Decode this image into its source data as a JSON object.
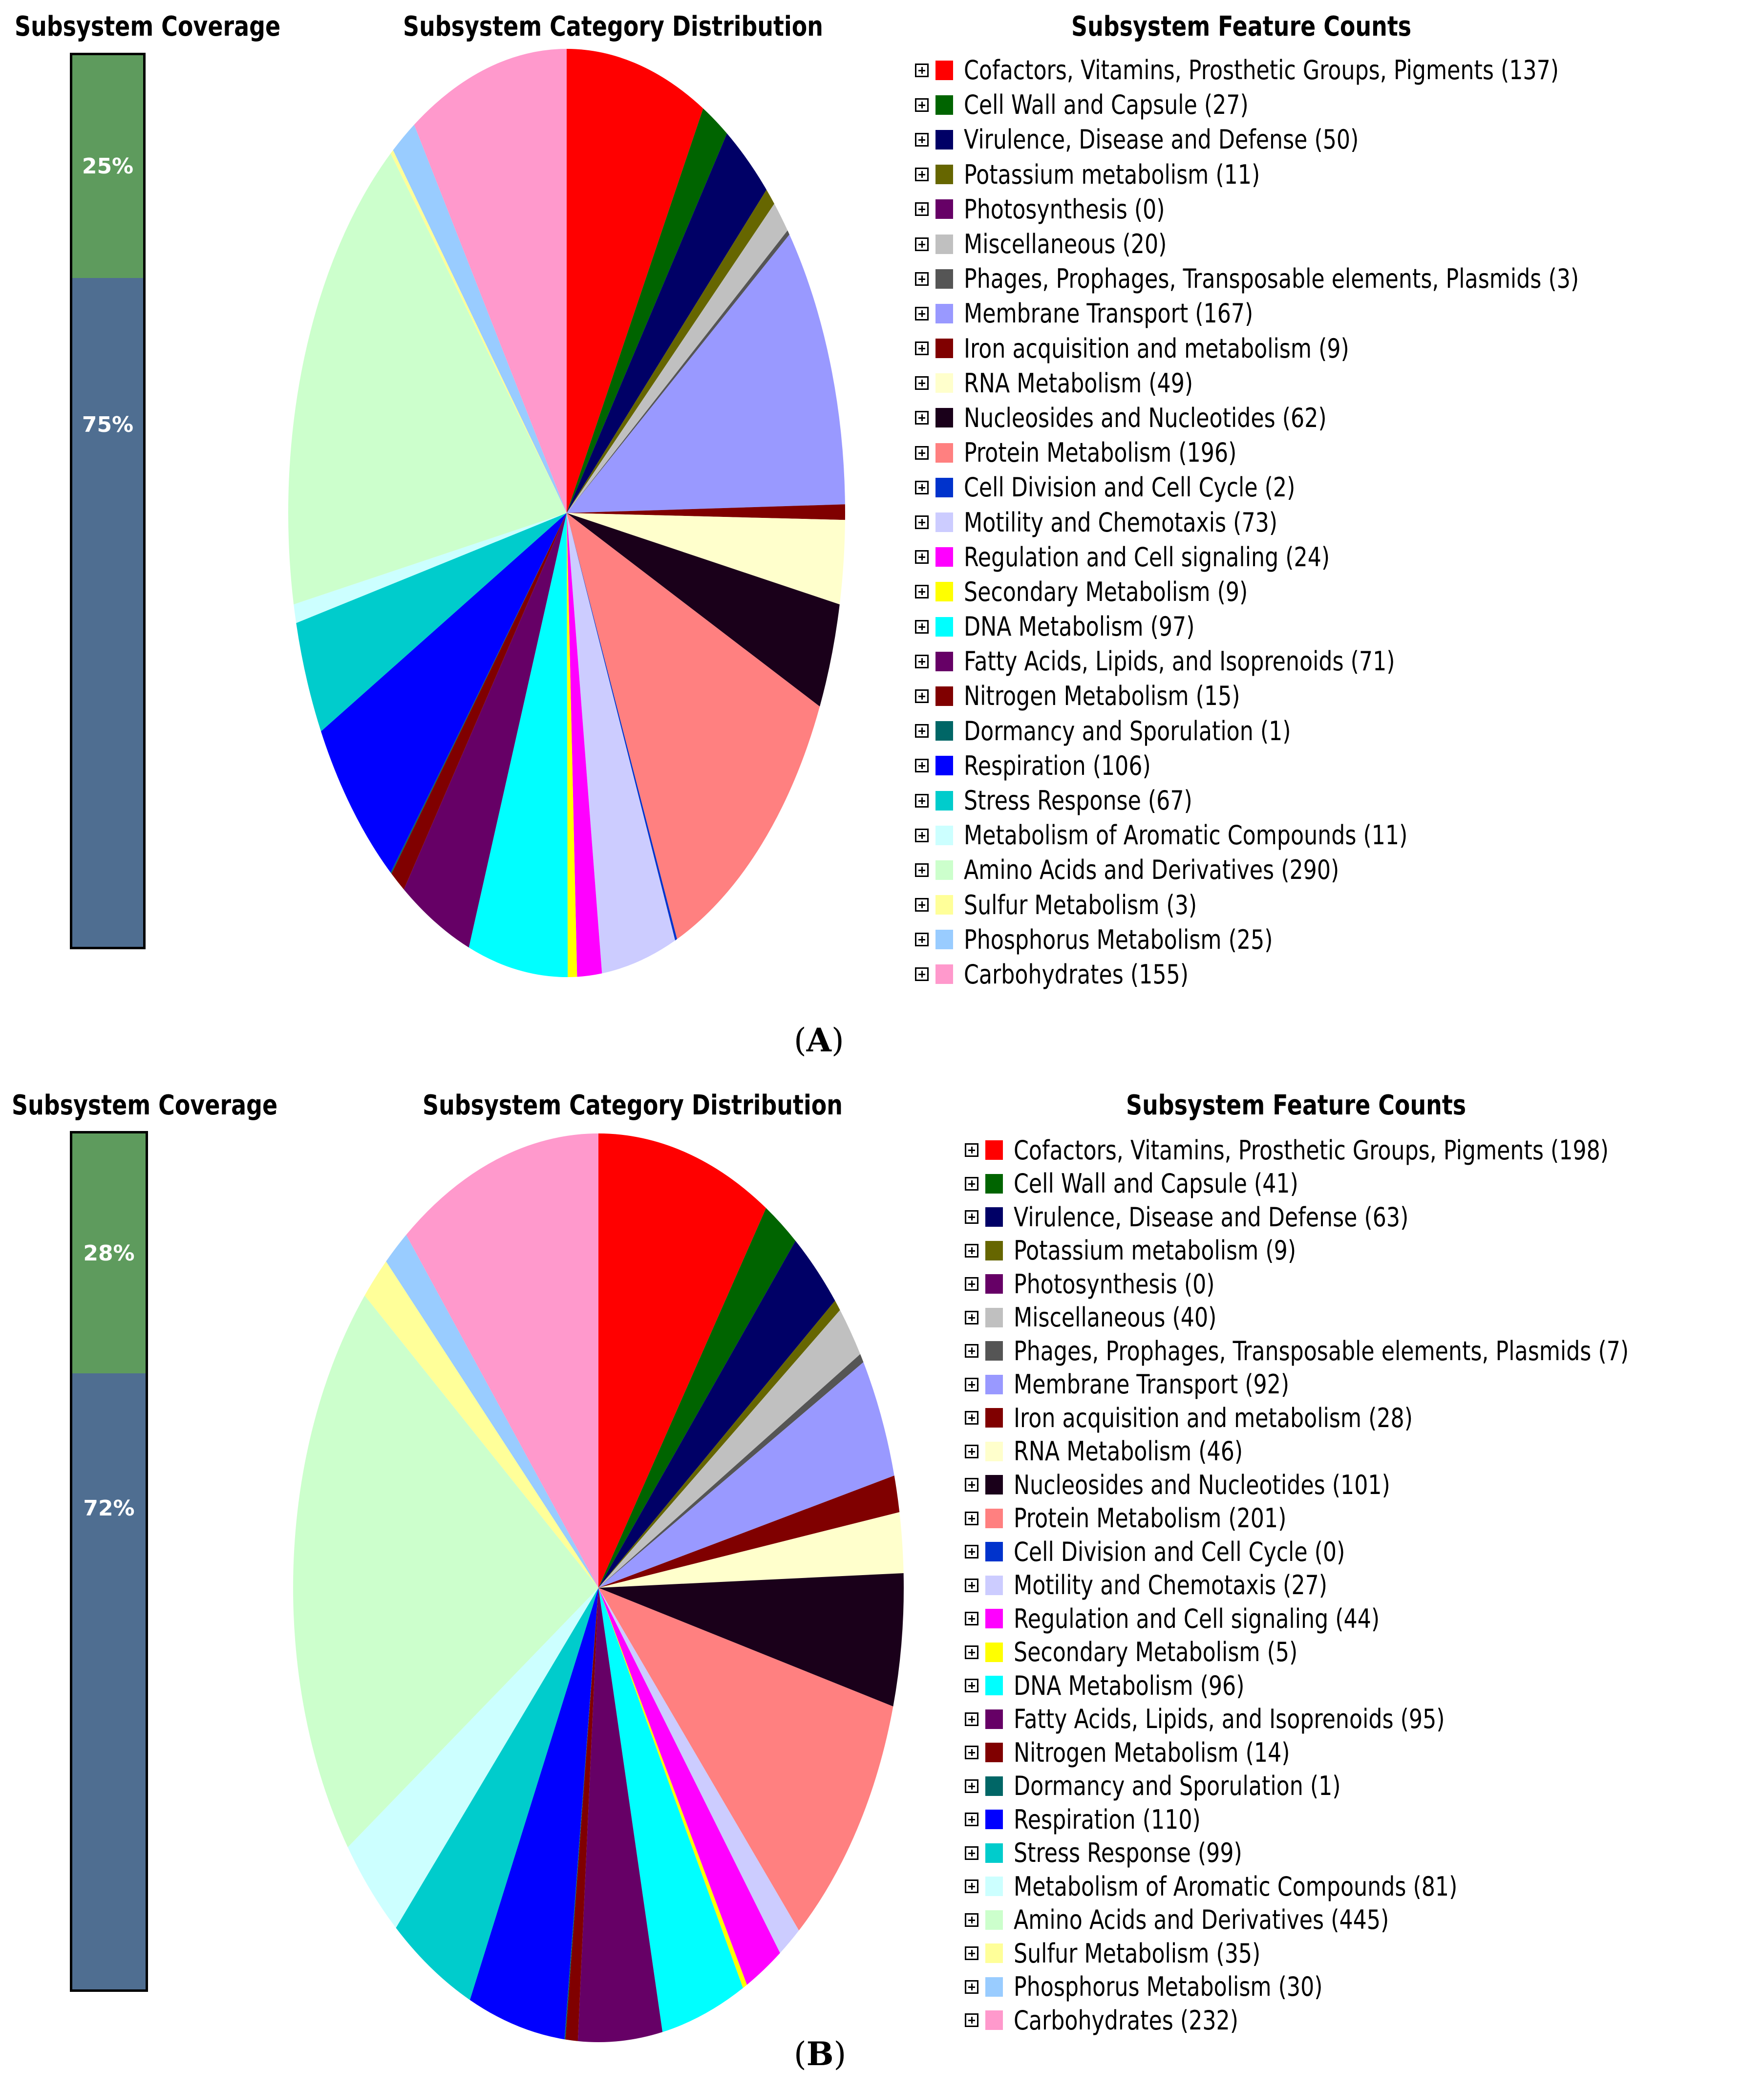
{
  "chart_data": [
    {
      "type": "pie",
      "panel_label": "A",
      "coverage_title": "Subsystem Coverage",
      "coverage": {
        "in_subsystem": "25%",
        "not_in_subsystem": "75%",
        "in_subsystem_value": 25,
        "not_in_subsystem_value": 75
      },
      "title": "Subsystem Category Distribution",
      "legend_title": "Subsystem Feature Counts",
      "series": [
        {
          "name": "Cofactors, Vitamins, Prosthetic Groups, Pigments",
          "value": 137,
          "label": "Cofactors, Vitamins, Prosthetic Groups, Pigments (137)",
          "color": "#ff0000"
        },
        {
          "name": "Cell Wall and Capsule",
          "value": 27,
          "label": "Cell Wall and Capsule (27)",
          "color": "#006400"
        },
        {
          "name": "Virulence, Disease and Defense",
          "value": 50,
          "label": "Virulence, Disease and Defense (50)",
          "color": "#000066"
        },
        {
          "name": "Potassium metabolism",
          "value": 11,
          "label": "Potassium metabolism (11)",
          "color": "#666600"
        },
        {
          "name": "Photosynthesis",
          "value": 0,
          "label": "Photosynthesis (0)",
          "color": "#660066"
        },
        {
          "name": "Miscellaneous",
          "value": 20,
          "label": "Miscellaneous (20)",
          "color": "#c0c0c0"
        },
        {
          "name": "Phages, Prophages, Transposable elements, Plasmids",
          "value": 3,
          "label": "Phages, Prophages, Transposable elements, Plasmids (3)",
          "color": "#555555"
        },
        {
          "name": "Membrane Transport",
          "value": 167,
          "label": "Membrane Transport (167)",
          "color": "#9999ff"
        },
        {
          "name": "Iron acquisition and metabolism",
          "value": 9,
          "label": "Iron acquisition and metabolism (9)",
          "color": "#800000"
        },
        {
          "name": "RNA Metabolism",
          "value": 49,
          "label": "RNA Metabolism (49)",
          "color": "#ffffcc"
        },
        {
          "name": "Nucleosides and Nucleotides",
          "value": 62,
          "label": "Nucleosides and Nucleotides (62)",
          "color": "#1a001a"
        },
        {
          "name": "Protein Metabolism",
          "value": 196,
          "label": "Protein Metabolism (196)",
          "color": "#ff8080"
        },
        {
          "name": "Cell Division and Cell Cycle",
          "value": 2,
          "label": "Cell Division and Cell Cycle (2)",
          "color": "#0033cc"
        },
        {
          "name": "Motility and Chemotaxis",
          "value": 73,
          "label": "Motility and Chemotaxis (73)",
          "color": "#ccccff"
        },
        {
          "name": "Regulation and Cell signaling",
          "value": 24,
          "label": "Regulation and Cell signaling (24)",
          "color": "#ff00ff"
        },
        {
          "name": "Secondary Metabolism",
          "value": 9,
          "label": "Secondary Metabolism (9)",
          "color": "#ffff00"
        },
        {
          "name": "DNA Metabolism",
          "value": 97,
          "label": "DNA Metabolism (97)",
          "color": "#00ffff"
        },
        {
          "name": "Fatty Acids, Lipids, and Isoprenoids",
          "value": 71,
          "label": "Fatty Acids, Lipids, and Isoprenoids (71)",
          "color": "#660066"
        },
        {
          "name": "Nitrogen Metabolism",
          "value": 15,
          "label": "Nitrogen Metabolism (15)",
          "color": "#800000"
        },
        {
          "name": "Dormancy and Sporulation",
          "value": 1,
          "label": "Dormancy and Sporulation (1)",
          "color": "#006666"
        },
        {
          "name": "Respiration",
          "value": 106,
          "label": "Respiration (106)",
          "color": "#0000ff"
        },
        {
          "name": "Stress Response",
          "value": 67,
          "label": "Stress Response (67)",
          "color": "#00cccc"
        },
        {
          "name": "Metabolism of Aromatic Compounds",
          "value": 11,
          "label": "Metabolism of Aromatic Compounds (11)",
          "color": "#ccffff"
        },
        {
          "name": "Amino Acids and Derivatives",
          "value": 290,
          "label": "Amino Acids and Derivatives (290)",
          "color": "#ccffcc"
        },
        {
          "name": "Sulfur Metabolism",
          "value": 3,
          "label": "Sulfur Metabolism (3)",
          "color": "#ffff99"
        },
        {
          "name": "Phosphorus Metabolism",
          "value": 25,
          "label": "Phosphorus Metabolism (25)",
          "color": "#99ccff"
        },
        {
          "name": "Carbohydrates",
          "value": 155,
          "label": "Carbohydrates (155)",
          "color": "#ff99cc"
        }
      ]
    },
    {
      "type": "pie",
      "panel_label": "B",
      "coverage_title": "Subsystem Coverage",
      "coverage": {
        "in_subsystem": "28%",
        "not_in_subsystem": "72%",
        "in_subsystem_value": 28,
        "not_in_subsystem_value": 72
      },
      "title": "Subsystem Category Distribution",
      "legend_title": "Subsystem Feature Counts",
      "series": [
        {
          "name": "Cofactors, Vitamins, Prosthetic Groups, Pigments",
          "value": 198,
          "label": "Cofactors, Vitamins, Prosthetic Groups, Pigments (198)",
          "color": "#ff0000"
        },
        {
          "name": "Cell Wall and Capsule",
          "value": 41,
          "label": "Cell Wall and Capsule (41)",
          "color": "#006400"
        },
        {
          "name": "Virulence, Disease and Defense",
          "value": 63,
          "label": "Virulence, Disease and Defense (63)",
          "color": "#000066"
        },
        {
          "name": "Potassium metabolism",
          "value": 9,
          "label": "Potassium metabolism (9)",
          "color": "#666600"
        },
        {
          "name": "Photosynthesis",
          "value": 0,
          "label": "Photosynthesis (0)",
          "color": "#660066"
        },
        {
          "name": "Miscellaneous",
          "value": 40,
          "label": "Miscellaneous (40)",
          "color": "#c0c0c0"
        },
        {
          "name": "Phages, Prophages, Transposable elements, Plasmids",
          "value": 7,
          "label": "Phages, Prophages, Transposable elements, Plasmids (7)",
          "color": "#555555"
        },
        {
          "name": "Membrane Transport",
          "value": 92,
          "label": "Membrane Transport (92)",
          "color": "#9999ff"
        },
        {
          "name": "Iron acquisition and metabolism",
          "value": 28,
          "label": "Iron acquisition and metabolism (28)",
          "color": "#800000"
        },
        {
          "name": "RNA Metabolism",
          "value": 46,
          "label": "RNA Metabolism (46)",
          "color": "#ffffcc"
        },
        {
          "name": "Nucleosides and Nucleotides",
          "value": 101,
          "label": "Nucleosides and Nucleotides (101)",
          "color": "#1a001a"
        },
        {
          "name": "Protein Metabolism",
          "value": 201,
          "label": "Protein Metabolism (201)",
          "color": "#ff8080"
        },
        {
          "name": "Cell Division and Cell Cycle",
          "value": 0,
          "label": "Cell Division and Cell Cycle (0)",
          "color": "#0033cc"
        },
        {
          "name": "Motility and Chemotaxis",
          "value": 27,
          "label": "Motility and Chemotaxis (27)",
          "color": "#ccccff"
        },
        {
          "name": "Regulation and Cell signaling",
          "value": 44,
          "label": "Regulation and Cell signaling (44)",
          "color": "#ff00ff"
        },
        {
          "name": "Secondary Metabolism",
          "value": 5,
          "label": "Secondary Metabolism (5)",
          "color": "#ffff00"
        },
        {
          "name": "DNA Metabolism",
          "value": 96,
          "label": "DNA Metabolism (96)",
          "color": "#00ffff"
        },
        {
          "name": "Fatty Acids, Lipids, and Isoprenoids",
          "value": 95,
          "label": "Fatty Acids, Lipids, and Isoprenoids (95)",
          "color": "#660066"
        },
        {
          "name": "Nitrogen Metabolism",
          "value": 14,
          "label": "Nitrogen Metabolism (14)",
          "color": "#800000"
        },
        {
          "name": "Dormancy and Sporulation",
          "value": 1,
          "label": "Dormancy and Sporulation (1)",
          "color": "#006666"
        },
        {
          "name": "Respiration",
          "value": 110,
          "label": "Respiration (110)",
          "color": "#0000ff"
        },
        {
          "name": "Stress Response",
          "value": 99,
          "label": "Stress Response (99)",
          "color": "#00cccc"
        },
        {
          "name": "Metabolism of Aromatic Compounds",
          "value": 81,
          "label": "Metabolism of Aromatic Compounds (81)",
          "color": "#ccffff"
        },
        {
          "name": "Amino Acids and Derivatives",
          "value": 445,
          "label": "Amino Acids and Derivatives (445)",
          "color": "#ccffcc"
        },
        {
          "name": "Sulfur Metabolism",
          "value": 35,
          "label": "Sulfur Metabolism (35)",
          "color": "#ffff99"
        },
        {
          "name": "Phosphorus Metabolism",
          "value": 30,
          "label": "Phosphorus Metabolism (30)",
          "color": "#99ccff"
        },
        {
          "name": "Carbohydrates",
          "value": 232,
          "label": "Carbohydrates (232)",
          "color": "#ff99cc"
        }
      ]
    }
  ]
}
